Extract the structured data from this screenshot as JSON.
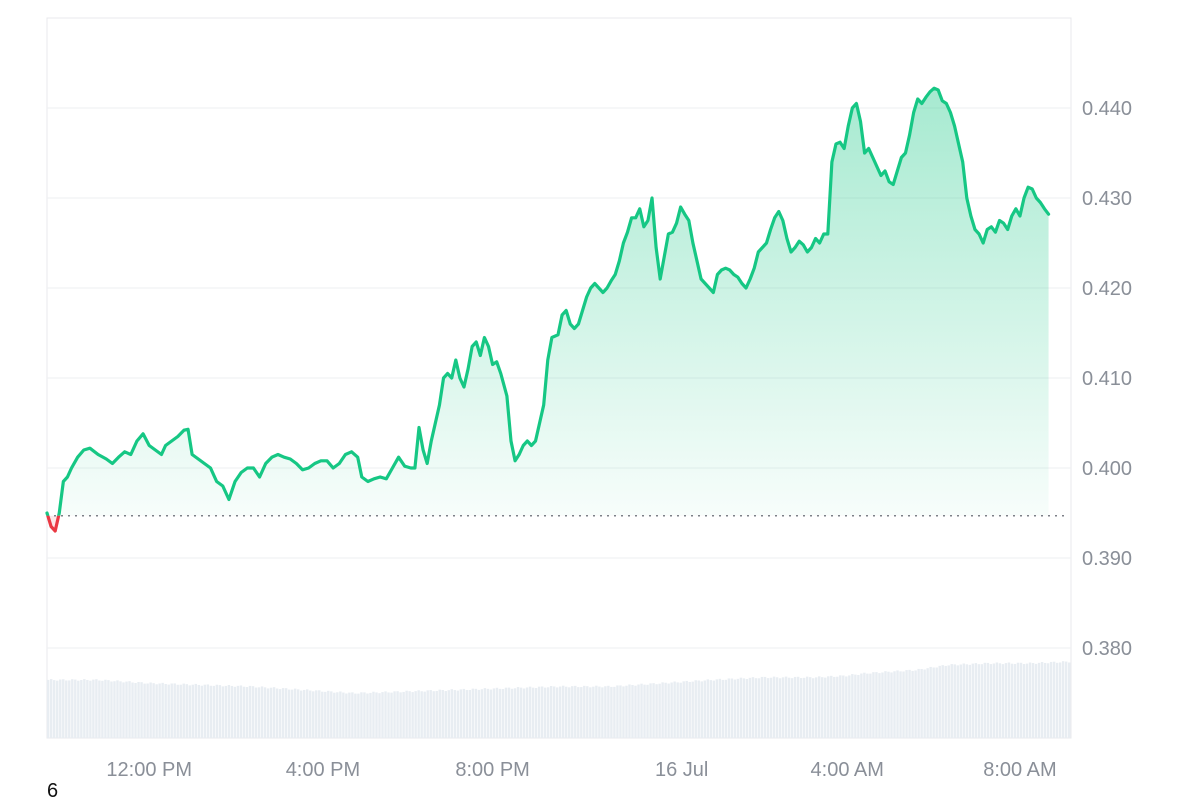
{
  "chart_data": {
    "type": "area",
    "title": "",
    "xlabel": "",
    "ylabel": "",
    "x_range": [
      0,
      1
    ],
    "ylim": [
      0.37,
      0.45
    ],
    "y_ticks": [
      {
        "value": 0.44,
        "label": "0.440"
      },
      {
        "value": 0.43,
        "label": "0.430"
      },
      {
        "value": 0.42,
        "label": "0.420"
      },
      {
        "value": 0.41,
        "label": "0.410"
      },
      {
        "value": 0.4,
        "label": "0.400"
      },
      {
        "value": 0.39,
        "label": "0.390"
      },
      {
        "value": 0.38,
        "label": "0.380"
      }
    ],
    "x_ticks": [
      {
        "value": 0.1,
        "label": "12:00 PM"
      },
      {
        "value": 0.27,
        "label": "4:00 PM"
      },
      {
        "value": 0.436,
        "label": "8:00 PM"
      },
      {
        "value": 0.621,
        "label": "16 Jul"
      },
      {
        "value": 0.783,
        "label": "4:00 AM"
      },
      {
        "value": 0.952,
        "label": "8:00 AM"
      }
    ],
    "baseline": 0.3947,
    "grid": true,
    "series": [
      {
        "color_up": "#16c784",
        "color_down": "#ea3943",
        "points": [
          [
            0.0,
            0.395
          ],
          [
            0.004,
            0.3935
          ],
          [
            0.008,
            0.393
          ],
          [
            0.012,
            0.395
          ],
          [
            0.016,
            0.3985
          ],
          [
            0.02,
            0.399
          ],
          [
            0.024,
            0.4
          ],
          [
            0.03,
            0.4012
          ],
          [
            0.036,
            0.402
          ],
          [
            0.042,
            0.4022
          ],
          [
            0.05,
            0.4015
          ],
          [
            0.058,
            0.401
          ],
          [
            0.064,
            0.4005
          ],
          [
            0.07,
            0.4012
          ],
          [
            0.076,
            0.4018
          ],
          [
            0.082,
            0.4015
          ],
          [
            0.088,
            0.403
          ],
          [
            0.094,
            0.4038
          ],
          [
            0.1,
            0.4025
          ],
          [
            0.106,
            0.402
          ],
          [
            0.112,
            0.4015
          ],
          [
            0.116,
            0.4025
          ],
          [
            0.122,
            0.403
          ],
          [
            0.128,
            0.4035
          ],
          [
            0.134,
            0.4042
          ],
          [
            0.138,
            0.4043
          ],
          [
            0.142,
            0.4015
          ],
          [
            0.148,
            0.401
          ],
          [
            0.154,
            0.4005
          ],
          [
            0.16,
            0.4
          ],
          [
            0.166,
            0.3985
          ],
          [
            0.172,
            0.398
          ],
          [
            0.178,
            0.3965
          ],
          [
            0.184,
            0.3985
          ],
          [
            0.19,
            0.3995
          ],
          [
            0.196,
            0.4
          ],
          [
            0.202,
            0.4
          ],
          [
            0.208,
            0.399
          ],
          [
            0.214,
            0.4005
          ],
          [
            0.22,
            0.4012
          ],
          [
            0.226,
            0.4015
          ],
          [
            0.232,
            0.4012
          ],
          [
            0.238,
            0.401
          ],
          [
            0.244,
            0.4005
          ],
          [
            0.25,
            0.3998
          ],
          [
            0.256,
            0.4
          ],
          [
            0.262,
            0.4005
          ],
          [
            0.268,
            0.4008
          ],
          [
            0.274,
            0.4008
          ],
          [
            0.28,
            0.4
          ],
          [
            0.286,
            0.4005
          ],
          [
            0.292,
            0.4015
          ],
          [
            0.298,
            0.4018
          ],
          [
            0.304,
            0.4012
          ],
          [
            0.308,
            0.399
          ],
          [
            0.314,
            0.3985
          ],
          [
            0.32,
            0.3988
          ],
          [
            0.326,
            0.399
          ],
          [
            0.332,
            0.3988
          ],
          [
            0.338,
            0.4
          ],
          [
            0.344,
            0.4012
          ],
          [
            0.35,
            0.4002
          ],
          [
            0.356,
            0.4
          ],
          [
            0.36,
            0.4
          ],
          [
            0.364,
            0.4045
          ],
          [
            0.368,
            0.402
          ],
          [
            0.372,
            0.4005
          ],
          [
            0.376,
            0.403
          ],
          [
            0.38,
            0.405
          ],
          [
            0.384,
            0.407
          ],
          [
            0.388,
            0.41
          ],
          [
            0.392,
            0.4105
          ],
          [
            0.396,
            0.41
          ],
          [
            0.4,
            0.412
          ],
          [
            0.404,
            0.41
          ],
          [
            0.408,
            0.409
          ],
          [
            0.412,
            0.411
          ],
          [
            0.416,
            0.4135
          ],
          [
            0.42,
            0.414
          ],
          [
            0.424,
            0.4125
          ],
          [
            0.428,
            0.4145
          ],
          [
            0.432,
            0.4135
          ],
          [
            0.436,
            0.4115
          ],
          [
            0.44,
            0.4118
          ],
          [
            0.444,
            0.4105
          ],
          [
            0.45,
            0.408
          ],
          [
            0.454,
            0.403
          ],
          [
            0.458,
            0.4008
          ],
          [
            0.462,
            0.4015
          ],
          [
            0.466,
            0.4025
          ],
          [
            0.47,
            0.403
          ],
          [
            0.474,
            0.4025
          ],
          [
            0.478,
            0.403
          ],
          [
            0.482,
            0.405
          ],
          [
            0.486,
            0.407
          ],
          [
            0.49,
            0.412
          ],
          [
            0.494,
            0.4145
          ],
          [
            0.5,
            0.4148
          ],
          [
            0.504,
            0.417
          ],
          [
            0.508,
            0.4175
          ],
          [
            0.512,
            0.416
          ],
          [
            0.516,
            0.4155
          ],
          [
            0.52,
            0.416
          ],
          [
            0.524,
            0.4175
          ],
          [
            0.528,
            0.419
          ],
          [
            0.532,
            0.42
          ],
          [
            0.536,
            0.4205
          ],
          [
            0.54,
            0.42
          ],
          [
            0.544,
            0.4195
          ],
          [
            0.548,
            0.42
          ],
          [
            0.552,
            0.4208
          ],
          [
            0.556,
            0.4215
          ],
          [
            0.56,
            0.423
          ],
          [
            0.564,
            0.425
          ],
          [
            0.568,
            0.4262
          ],
          [
            0.572,
            0.4278
          ],
          [
            0.576,
            0.4278
          ],
          [
            0.58,
            0.4288
          ],
          [
            0.584,
            0.4268
          ],
          [
            0.588,
            0.4275
          ],
          [
            0.592,
            0.43
          ],
          [
            0.596,
            0.4245
          ],
          [
            0.6,
            0.421
          ],
          [
            0.604,
            0.4235
          ],
          [
            0.608,
            0.426
          ],
          [
            0.612,
            0.4262
          ],
          [
            0.616,
            0.4272
          ],
          [
            0.62,
            0.429
          ],
          [
            0.624,
            0.4282
          ],
          [
            0.628,
            0.4275
          ],
          [
            0.632,
            0.425
          ],
          [
            0.636,
            0.423
          ],
          [
            0.64,
            0.421
          ],
          [
            0.644,
            0.4205
          ],
          [
            0.648,
            0.42
          ],
          [
            0.652,
            0.4195
          ],
          [
            0.656,
            0.4215
          ],
          [
            0.66,
            0.422
          ],
          [
            0.664,
            0.4222
          ],
          [
            0.668,
            0.422
          ],
          [
            0.672,
            0.4215
          ],
          [
            0.676,
            0.4212
          ],
          [
            0.68,
            0.4205
          ],
          [
            0.684,
            0.42
          ],
          [
            0.688,
            0.421
          ],
          [
            0.692,
            0.4222
          ],
          [
            0.696,
            0.424
          ],
          [
            0.7,
            0.4245
          ],
          [
            0.704,
            0.425
          ],
          [
            0.708,
            0.4265
          ],
          [
            0.712,
            0.4278
          ],
          [
            0.716,
            0.4285
          ],
          [
            0.72,
            0.4275
          ],
          [
            0.724,
            0.4255
          ],
          [
            0.728,
            0.424
          ],
          [
            0.732,
            0.4245
          ],
          [
            0.736,
            0.4252
          ],
          [
            0.74,
            0.4248
          ],
          [
            0.744,
            0.424
          ],
          [
            0.748,
            0.4245
          ],
          [
            0.752,
            0.4255
          ],
          [
            0.756,
            0.425
          ],
          [
            0.76,
            0.426
          ],
          [
            0.764,
            0.426
          ],
          [
            0.768,
            0.434
          ],
          [
            0.772,
            0.436
          ],
          [
            0.776,
            0.4362
          ],
          [
            0.78,
            0.4355
          ],
          [
            0.784,
            0.438
          ],
          [
            0.788,
            0.44
          ],
          [
            0.792,
            0.4405
          ],
          [
            0.796,
            0.4385
          ],
          [
            0.8,
            0.435
          ],
          [
            0.804,
            0.4355
          ],
          [
            0.808,
            0.4345
          ],
          [
            0.812,
            0.4335
          ],
          [
            0.816,
            0.4325
          ],
          [
            0.82,
            0.433
          ],
          [
            0.824,
            0.4318
          ],
          [
            0.828,
            0.4315
          ],
          [
            0.832,
            0.433
          ],
          [
            0.836,
            0.4345
          ],
          [
            0.84,
            0.435
          ],
          [
            0.844,
            0.437
          ],
          [
            0.848,
            0.4395
          ],
          [
            0.852,
            0.441
          ],
          [
            0.856,
            0.4405
          ],
          [
            0.86,
            0.4412
          ],
          [
            0.864,
            0.4418
          ],
          [
            0.868,
            0.4422
          ],
          [
            0.872,
            0.442
          ],
          [
            0.876,
            0.4408
          ],
          [
            0.88,
            0.4405
          ],
          [
            0.884,
            0.4395
          ],
          [
            0.888,
            0.438
          ],
          [
            0.892,
            0.436
          ],
          [
            0.896,
            0.434
          ],
          [
            0.9,
            0.43
          ],
          [
            0.904,
            0.428
          ],
          [
            0.908,
            0.4265
          ],
          [
            0.912,
            0.426
          ],
          [
            0.916,
            0.425
          ],
          [
            0.92,
            0.4265
          ],
          [
            0.924,
            0.4268
          ],
          [
            0.928,
            0.4262
          ],
          [
            0.932,
            0.4275
          ],
          [
            0.936,
            0.4272
          ],
          [
            0.94,
            0.4265
          ],
          [
            0.944,
            0.428
          ],
          [
            0.948,
            0.4288
          ],
          [
            0.952,
            0.428
          ],
          [
            0.956,
            0.43
          ],
          [
            0.96,
            0.4312
          ],
          [
            0.964,
            0.431
          ],
          [
            0.968,
            0.43
          ],
          [
            0.972,
            0.4295
          ],
          [
            0.976,
            0.4288
          ],
          [
            0.98,
            0.4282
          ]
        ]
      }
    ],
    "volume": {
      "color": "#e8edf2",
      "ylim": [
        0,
        1
      ],
      "knots": [
        [
          0.0,
          0.7
        ],
        [
          0.05,
          0.7
        ],
        [
          0.1,
          0.66
        ],
        [
          0.15,
          0.64
        ],
        [
          0.2,
          0.62
        ],
        [
          0.25,
          0.58
        ],
        [
          0.3,
          0.54
        ],
        [
          0.35,
          0.56
        ],
        [
          0.4,
          0.58
        ],
        [
          0.45,
          0.6
        ],
        [
          0.5,
          0.62
        ],
        [
          0.55,
          0.62
        ],
        [
          0.6,
          0.66
        ],
        [
          0.65,
          0.7
        ],
        [
          0.7,
          0.73
        ],
        [
          0.75,
          0.73
        ],
        [
          0.78,
          0.75
        ],
        [
          0.8,
          0.78
        ],
        [
          0.85,
          0.82
        ],
        [
          0.88,
          0.88
        ],
        [
          0.92,
          0.9
        ],
        [
          0.96,
          0.9
        ],
        [
          1.0,
          0.92
        ]
      ]
    },
    "footnote": "6"
  }
}
